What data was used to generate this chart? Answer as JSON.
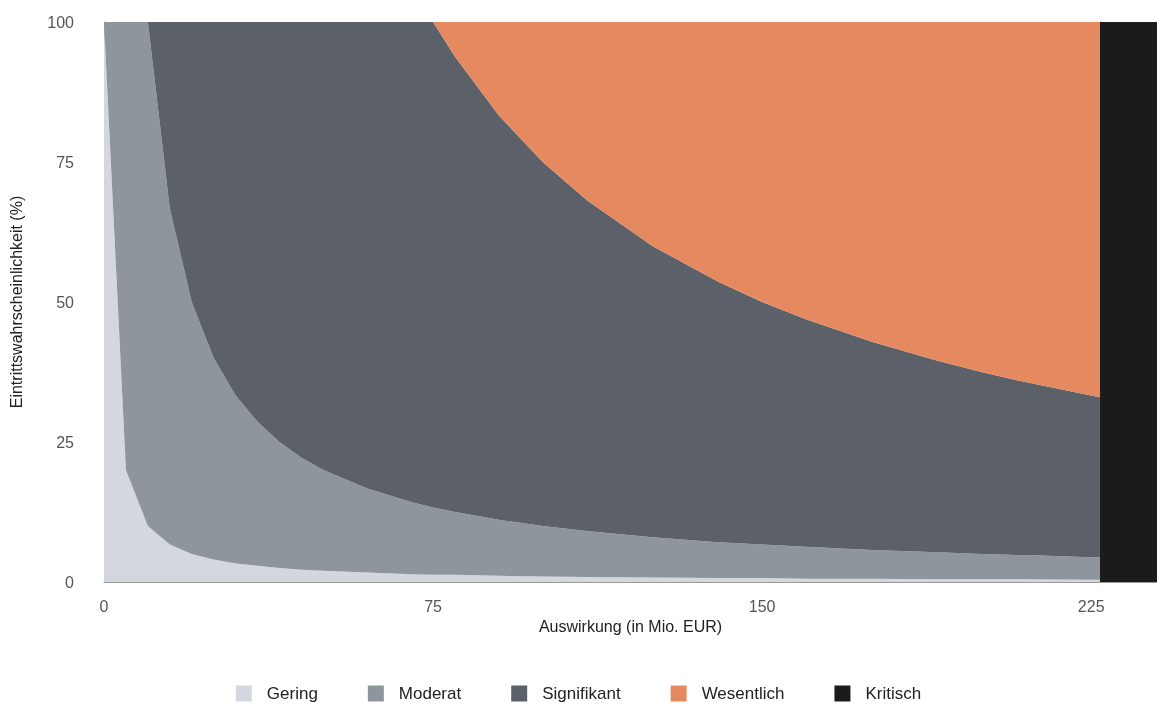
{
  "chart_data": {
    "type": "area",
    "stacked": true,
    "xlabel": "Auswirkung (in Mio. EUR)",
    "ylabel": "Eintrittswahrscheinlichkeit (%)",
    "x": [
      0,
      5,
      10,
      15,
      20,
      25,
      30,
      35,
      40,
      45,
      50,
      60,
      70,
      75,
      80,
      90,
      100,
      110,
      125,
      140,
      150,
      160,
      175,
      190,
      200,
      210,
      225,
      227
    ],
    "xlim": [
      0,
      240
    ],
    "xticks": [
      0,
      75,
      150,
      225
    ],
    "ylim": [
      0,
      100
    ],
    "yticks": [
      0,
      25,
      50,
      75,
      100
    ],
    "legend": "bottom",
    "series": [
      {
        "name": "Gering",
        "color": "#d4d7de",
        "values": [
          100,
          20,
          10,
          6.7,
          5,
          4,
          3.3,
          2.9,
          2.5,
          2.2,
          2,
          1.7,
          1.4,
          1.3,
          1.3,
          1.1,
          1,
          0.9,
          0.8,
          0.7,
          0.7,
          0.6,
          0.6,
          0.5,
          0.5,
          0.5,
          0.4,
          0.4
        ]
      },
      {
        "name": "Moderat",
        "color": "#8f959d",
        "values": [
          0,
          80,
          90,
          60,
          45,
          36,
          30,
          25.7,
          22.5,
          20,
          18,
          15,
          12.9,
          12,
          11.2,
          10,
          9,
          8.2,
          7.2,
          6.4,
          6,
          5.7,
          5.1,
          4.8,
          4.5,
          4.3,
          4,
          4
        ]
      },
      {
        "name": "Signifikant",
        "color": "#5c6069",
        "values": [
          0,
          0,
          0,
          33.3,
          50,
          60,
          66.7,
          71.4,
          75,
          77.8,
          80,
          83.3,
          85.7,
          86.7,
          81.3,
          72.2,
          65,
          59.1,
          52,
          46.5,
          43.3,
          40.6,
          37.2,
          34.2,
          32.5,
          30.9,
          28.9,
          28.6
        ]
      },
      {
        "name": "Wesentlich",
        "color": "#e58a60",
        "values": [
          0,
          0,
          0,
          0,
          0,
          0,
          0,
          0,
          0,
          0,
          0,
          0,
          0,
          0,
          6.2,
          16.7,
          25,
          31.8,
          40,
          46.4,
          50,
          53.1,
          57.1,
          60.5,
          62.5,
          64.3,
          66.7,
          67
        ]
      }
    ],
    "bands": [
      {
        "axis": "x",
        "from": 227,
        "to": 240,
        "label": "Kritisch",
        "color": "#1b1b1c"
      }
    ]
  }
}
